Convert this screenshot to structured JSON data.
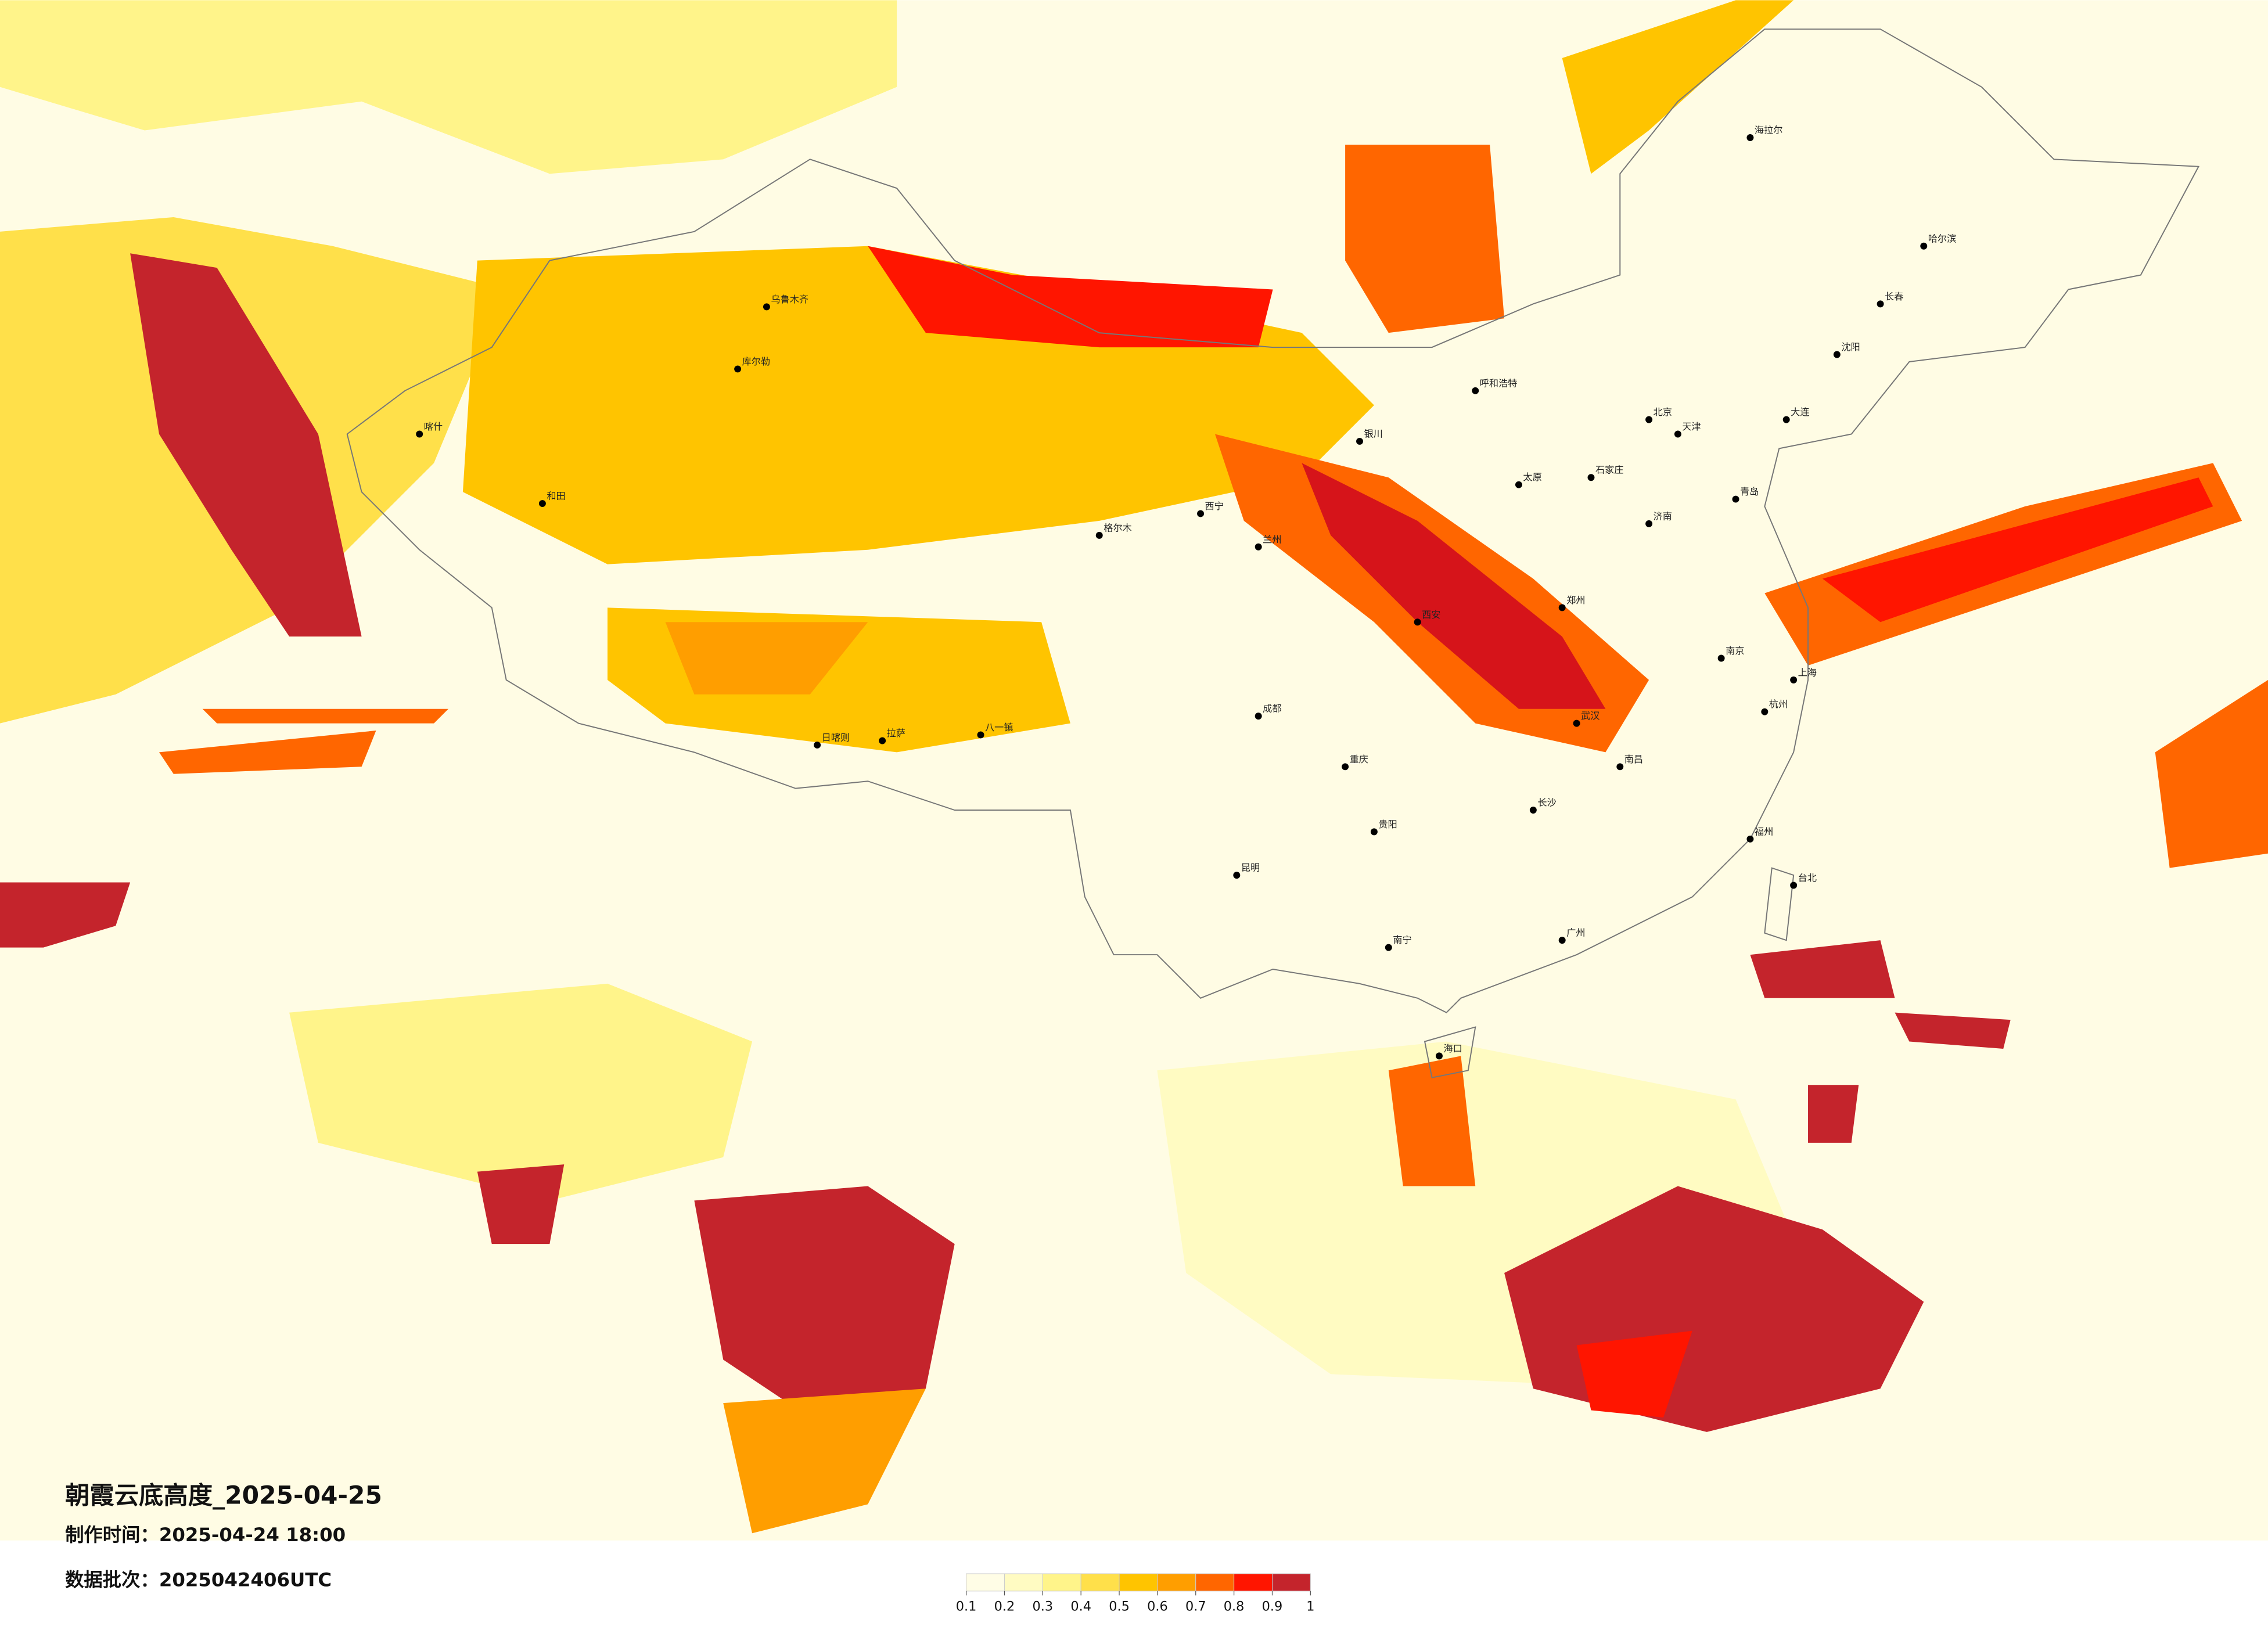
{
  "title": "朝霞云底高度_2025-04-25",
  "made_time": "制作时间：2025-04-24 18:00",
  "batch": "数据批次：2025042406UTC",
  "legend": {
    "colors": [
      "#fffde6",
      "#fffbc2",
      "#fff48a",
      "#ffe04a",
      "#ffc400",
      "#ff9e00",
      "#ff6600",
      "#ff1500",
      "#c4242c"
    ],
    "ticks": [
      0.1,
      0.2,
      0.3,
      0.4,
      0.5,
      0.6,
      0.7,
      0.8,
      0.9,
      1
    ]
  },
  "cities": [
    "乌鲁木齐",
    "库尔勒",
    "喀什",
    "和田",
    "格尔木",
    "拉萨",
    "日喀则",
    "八一镇",
    "西宁",
    "兰州",
    "银川",
    "呼和浩特",
    "太原",
    "石家庄",
    "北京",
    "天津",
    "济南",
    "郑州",
    "西安",
    "成都",
    "重庆",
    "武汉",
    "长沙",
    "南昌",
    "南京",
    "上海",
    "杭州",
    "福州",
    "贵阳",
    "昆明",
    "南宁",
    "广州",
    "海口",
    "台北",
    "沈阳",
    "长春",
    "哈尔滨",
    "海拉尔",
    "大连",
    "青岛"
  ]
}
